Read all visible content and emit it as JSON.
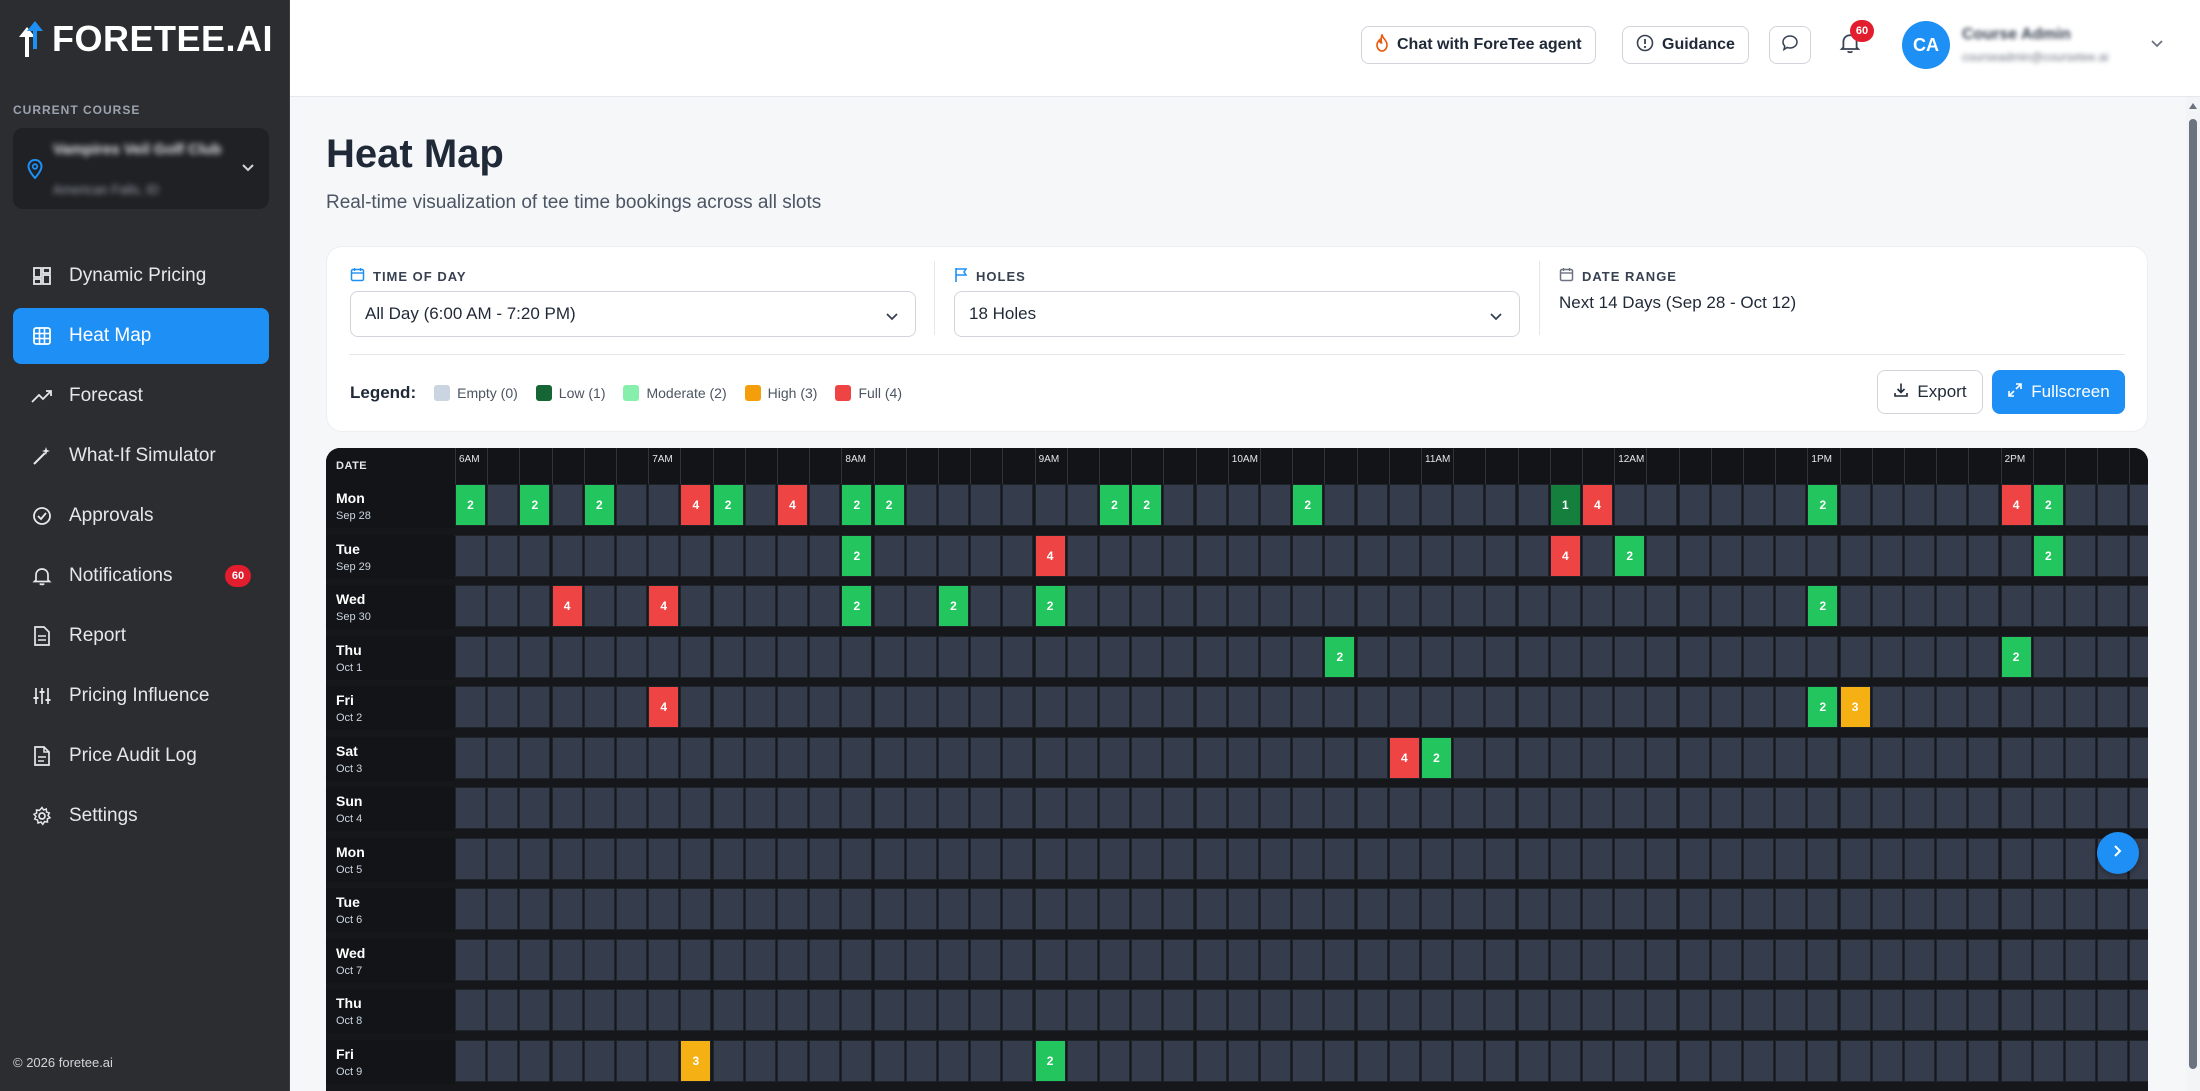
{
  "app": {
    "logo": "FORETEE.AI"
  },
  "sidebar": {
    "course_label": "CURRENT COURSE",
    "course_name": "Vampires Veil Golf Club",
    "course_location": "American Falls, ID",
    "items": [
      {
        "label": "Dynamic Pricing",
        "icon": "dashboard-icon"
      },
      {
        "label": "Heat Map",
        "icon": "grid-icon",
        "active": true
      },
      {
        "label": "Forecast",
        "icon": "trend-icon"
      },
      {
        "label": "What-If Simulator",
        "icon": "wand-icon"
      },
      {
        "label": "Approvals",
        "icon": "check-circle-icon"
      },
      {
        "label": "Notifications",
        "icon": "bell-icon",
        "badge": "60"
      },
      {
        "label": "Report",
        "icon": "document-icon"
      },
      {
        "label": "Pricing Influence",
        "icon": "sliders-icon"
      },
      {
        "label": "Price Audit Log",
        "icon": "file-icon"
      },
      {
        "label": "Settings",
        "icon": "gear-icon"
      }
    ],
    "copyright": "© 2026 foretee.ai"
  },
  "header": {
    "chat_label": "Chat with ForeTee agent",
    "guidance_label": "Guidance",
    "notifications_count": "60",
    "avatar_initials": "CA",
    "user_name": "Course Admin",
    "user_email": "courseadmin@coursetee.ai"
  },
  "page": {
    "title": "Heat Map",
    "subtitle": "Real-time visualization of tee time bookings across all slots"
  },
  "filters": {
    "time_label": "TIME OF DAY",
    "time_value": "All Day (6:00 AM - 7:20 PM)",
    "holes_label": "HOLES",
    "holes_value": "18 Holes",
    "range_label": "DATE RANGE",
    "range_value": "Next 14 Days (Sep 28 - Oct 12)"
  },
  "legend": {
    "title": "Legend:",
    "items": [
      {
        "label": "Empty (0)",
        "color": "#cbd5e1"
      },
      {
        "label": "Low (1)",
        "color": "#166534"
      },
      {
        "label": "Moderate (2)",
        "color": "#86efac"
      },
      {
        "label": "High (3)",
        "color": "#f59e0b"
      },
      {
        "label": "Full (4)",
        "color": "#ef4444"
      }
    ]
  },
  "actions": {
    "export_label": "Export",
    "fullscreen_label": "Fullscreen"
  },
  "heatmap": {
    "date_header": "DATE",
    "time_labels": [
      "6AM",
      "7AM",
      "8AM",
      "9AM",
      "10AM",
      "11AM",
      "12AM",
      "1PM",
      "2PM"
    ],
    "colors": {
      "0": "#353c4b",
      "1": "#15803d",
      "2": "#22c55e",
      "3": "#f5b014",
      "4": "#ef4444"
    },
    "rows": [
      {
        "day": "Mon",
        "date": "Sep 28",
        "cells": {
          "0": 2,
          "2": 2,
          "4": 2,
          "7": 4,
          "8": 2,
          "10": 4,
          "12": 2,
          "13": 2,
          "20": 2,
          "21": 2,
          "26": 2,
          "34": 1,
          "35": 4,
          "42": 2,
          "48": 4,
          "49": 2
        }
      },
      {
        "day": "Tue",
        "date": "Sep 29",
        "cells": {
          "12": 2,
          "18": 4,
          "34": 4,
          "36": 2,
          "49": 2
        }
      },
      {
        "day": "Wed",
        "date": "Sep 30",
        "cells": {
          "3": 4,
          "6": 4,
          "12": 2,
          "15": 2,
          "18": 2,
          "42": 2
        }
      },
      {
        "day": "Thu",
        "date": "Oct 1",
        "cells": {
          "27": 2,
          "48": 2
        }
      },
      {
        "day": "Fri",
        "date": "Oct 2",
        "cells": {
          "6": 4,
          "42": 2,
          "43": 3
        }
      },
      {
        "day": "Sat",
        "date": "Oct 3",
        "cells": {
          "29": 4,
          "30": 2
        }
      },
      {
        "day": "Sun",
        "date": "Oct 4",
        "cells": {}
      },
      {
        "day": "Mon",
        "date": "Oct 5",
        "cells": {}
      },
      {
        "day": "Tue",
        "date": "Oct 6",
        "cells": {}
      },
      {
        "day": "Wed",
        "date": "Oct 7",
        "cells": {}
      },
      {
        "day": "Thu",
        "date": "Oct 8",
        "cells": {}
      },
      {
        "day": "Fri",
        "date": "Oct 9",
        "cells": {
          "7": 3,
          "18": 2
        }
      }
    ]
  }
}
